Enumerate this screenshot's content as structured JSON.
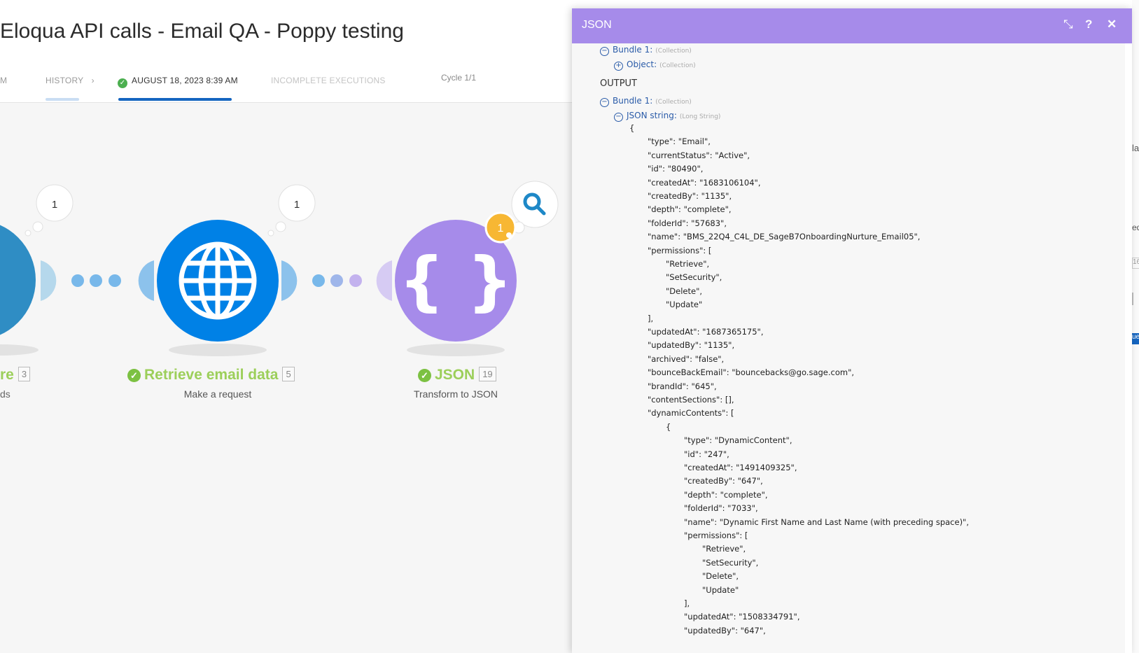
{
  "header": {
    "title": "Eloqua API calls - Email QA - Poppy testing",
    "tabs": {
      "prev": "M",
      "history": "HISTORY",
      "history_chevron": "›",
      "run": "AUGUST 18, 2023 8:39 AM",
      "incomplete": "INCOMPLETE EXECUTIONS"
    },
    "cycle": "Cycle 1/1"
  },
  "modules": {
    "left": {
      "name_fragment": "re",
      "id": "3",
      "sub_fragment": "ds",
      "bubble": "1"
    },
    "http": {
      "name": "Retrieve email data",
      "id": "5",
      "sub": "Make a request",
      "bubble": "1"
    },
    "json": {
      "name": "JSON",
      "id": "19",
      "sub": "Transform to JSON",
      "badge": "1",
      "brace_text": "{ }"
    }
  },
  "colors": {
    "http": "#0081e6",
    "json": "#a68bea",
    "success": "#7cc142",
    "panel_header": "#a68bea"
  },
  "panel": {
    "title": "JSON",
    "icons": [
      "collapse-icon",
      "help-icon",
      "close-icon"
    ],
    "input_bundle": {
      "label": "Bundle 1:",
      "type": "(Collection)"
    },
    "input_object": {
      "label": "Object:",
      "type": "(Collection)"
    },
    "output_label": "OUTPUT",
    "output_bundle": {
      "label": "Bundle 1:",
      "type": "(Collection)"
    },
    "json_string": {
      "label": "JSON string:",
      "type": "(Long String)"
    },
    "lines": [
      "{",
      "\"type\": \"Email\",",
      "\"currentStatus\": \"Active\",",
      "\"id\": \"80490\",",
      "\"createdAt\": \"1683106104\",",
      "\"createdBy\": \"1135\",",
      "\"depth\": \"complete\",",
      "\"folderId\": \"57683\",",
      "\"name\": \"BMS_22Q4_C4L_DE_SageB7OnboardingNurture_Email05\",",
      "\"permissions\": [",
      "\"Retrieve\",",
      "\"SetSecurity\",",
      "\"Delete\",",
      "\"Update\"",
      "],",
      "\"updatedAt\": \"1687365175\",",
      "\"updatedBy\": \"1135\",",
      "\"archived\": \"false\",",
      "\"bounceBackEmail\": \"bouncebacks@go.sage.com\",",
      "\"brandId\": \"645\",",
      "\"contentSections\": [],",
      "\"dynamicContents\": [",
      "{",
      "\"type\": \"DynamicContent\",",
      "\"id\": \"247\",",
      "\"createdAt\": \"1491409325\",",
      "\"createdBy\": \"647\",",
      "\"depth\": \"complete\",",
      "\"folderId\": \"7033\",",
      "\"name\": \"Dynamic First Name and Last Name (with preceding space)\",",
      "\"permissions\": [",
      "\"Retrieve\",",
      "\"SetSecurity\",",
      "\"Delete\",",
      "\"Update\"",
      "],",
      "\"updatedAt\": \"1508334791\",",
      "\"updatedBy\": \"647\","
    ]
  },
  "edge_fragments": {
    "a": "la",
    "b": "ed",
    "c": "16",
    "d": "ue"
  }
}
